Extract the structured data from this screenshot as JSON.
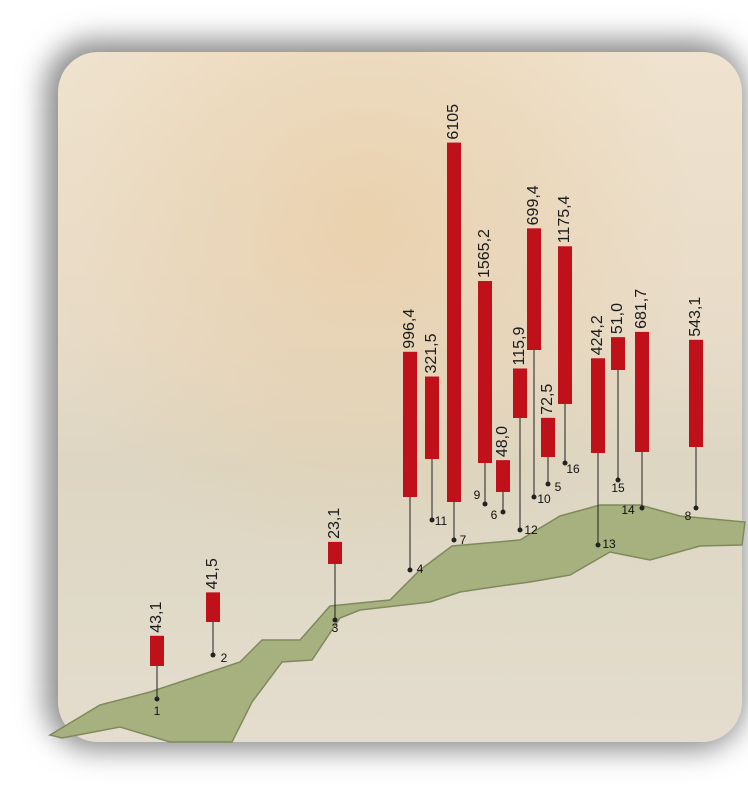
{
  "chart_data": {
    "type": "bar",
    "categories": [
      "1",
      "2",
      "3",
      "4",
      "5",
      "6",
      "7",
      "8",
      "9",
      "10",
      "11",
      "12",
      "13",
      "14",
      "15",
      "16"
    ],
    "values": [
      43.1,
      41.5,
      23.1,
      996.4,
      72.5,
      48.0,
      6105,
      543.1,
      1565.2,
      699.4,
      321.5,
      115.9,
      424.2,
      681.7,
      51.0,
      1175.4
    ],
    "value_labels": [
      "43,1",
      "41,5",
      "23,1",
      "996,4",
      "72,5",
      "48,0",
      "6105",
      "543,1",
      "1565,2",
      "699,4",
      "321,5",
      "115,9",
      "424,2",
      "681,7",
      "51,0",
      "1175,4"
    ],
    "color": "#c0111b"
  }
}
